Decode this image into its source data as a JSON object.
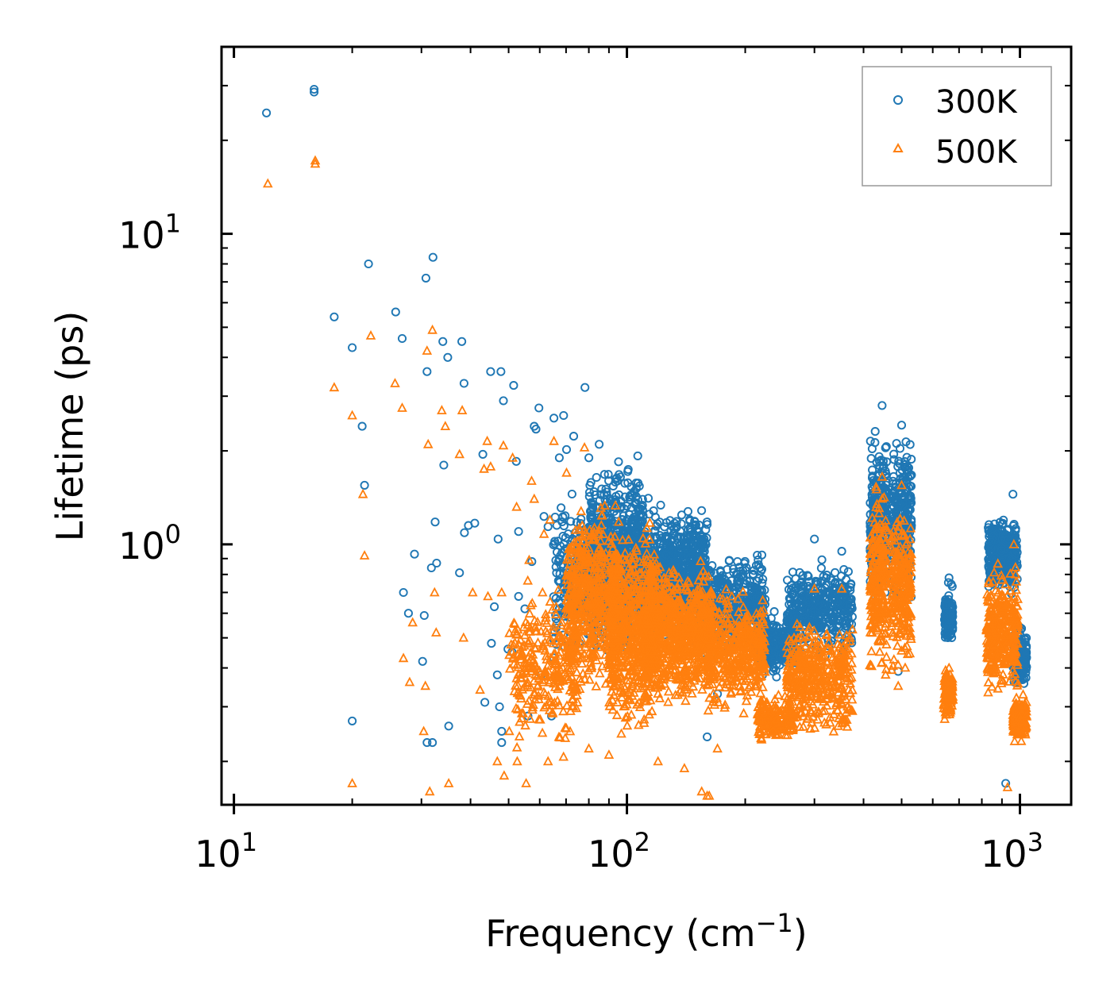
{
  "chart_data": {
    "type": "scatter",
    "xscale": "log",
    "yscale": "log",
    "xlim": [
      9.3,
      1350
    ],
    "ylim": [
      0.145,
      40
    ],
    "xlabel": "Frequency (cm",
    "xlabel_sup": "−1",
    "xlabel_close": ")",
    "ylabel": "Lifetime (ps)",
    "x_ticks": [
      {
        "value": 10,
        "base": "10",
        "exp": "1"
      },
      {
        "value": 100,
        "base": "10",
        "exp": "2"
      },
      {
        "value": 1000,
        "base": "10",
        "exp": "3"
      }
    ],
    "y_ticks": [
      {
        "value": 1,
        "base": "10",
        "exp": "0"
      },
      {
        "value": 10,
        "base": "10",
        "exp": "1"
      }
    ],
    "legend_position": "top-right",
    "series": [
      {
        "name": "300K",
        "marker": "circle",
        "color": "#1f77b4",
        "points": [
          [
            12.1,
            24.5
          ],
          [
            16,
            29.2
          ],
          [
            16,
            28.6
          ],
          [
            18,
            5.4
          ],
          [
            20,
            4.3
          ],
          [
            21.2,
            2.4
          ],
          [
            21.5,
            1.55
          ],
          [
            22,
            8.0
          ],
          [
            20,
            0.27
          ],
          [
            25.8,
            5.6
          ],
          [
            26.8,
            4.6
          ],
          [
            27,
            0.7
          ],
          [
            27.8,
            0.6
          ],
          [
            28.8,
            0.93
          ],
          [
            30.5,
            0.59
          ],
          [
            30.8,
            7.2
          ],
          [
            31,
            3.6
          ],
          [
            31,
            0.23
          ],
          [
            30.2,
            0.42
          ],
          [
            31.8,
            0.84
          ],
          [
            32.1,
            8.4
          ],
          [
            32.5,
            1.18
          ],
          [
            32.8,
            0.87
          ],
          [
            32,
            0.23
          ],
          [
            34,
            4.5
          ],
          [
            34.2,
            1.8
          ],
          [
            35,
            4.0
          ],
          [
            35.2,
            0.26
          ],
          [
            37.5,
            0.81
          ],
          [
            38,
            4.5
          ],
          [
            38.5,
            3.3
          ],
          [
            38.6,
            1.09
          ],
          [
            39.5,
            1.15
          ],
          [
            41,
            1.17
          ],
          [
            43,
            1.95
          ],
          [
            43.5,
            0.31
          ],
          [
            45,
            3.6
          ],
          [
            45.2,
            0.48
          ],
          [
            46,
            0.63
          ],
          [
            46.8,
            0.38
          ],
          [
            47,
            1.04
          ],
          [
            47.4,
            0.3
          ],
          [
            47.8,
            3.6
          ],
          [
            48,
            0.23
          ],
          [
            48.5,
            2.9
          ],
          [
            48,
            0.25
          ],
          [
            49.8,
            0.46
          ],
          [
            51,
            0.45
          ],
          [
            51.5,
            3.25
          ],
          [
            52.3,
            1.85
          ],
          [
            53,
            1.1
          ],
          [
            53,
            0.68
          ],
          [
            55,
            0.62
          ],
          [
            56,
            0.28
          ],
          [
            57.3,
            0.88
          ],
          [
            58.1,
            2.4
          ],
          [
            58.7,
            2.35
          ],
          [
            59.7,
            2.75
          ],
          [
            60.5,
            0.38
          ],
          [
            61.5,
            1.23
          ],
          [
            63,
            1.14
          ],
          [
            64.3,
            0.28
          ],
          [
            65.2,
            2.55
          ],
          [
            66,
            0.67
          ],
          [
            67.3,
            1.9
          ],
          [
            69,
            2.6
          ],
          [
            70.2,
            2.02
          ],
          [
            73.2,
            2.23
          ],
          [
            78.2,
            3.2
          ],
          [
            80,
            1.9
          ],
          [
            85,
            2.1
          ],
          [
            97,
            0.98
          ],
          [
            106,
            0.83
          ],
          [
            170,
            0.33
          ],
          [
            160,
            0.24
          ],
          [
            300,
            1.04
          ],
          [
            352,
            0.95
          ],
          [
            446,
            2.8
          ],
          [
            500,
            2.42
          ],
          [
            490,
            0.39
          ],
          [
            920,
            0.17
          ],
          [
            960,
            1.45
          ],
          [
            660,
            0.78
          ]
        ],
        "clusters": [
          {
            "x": [
              65,
              90
            ],
            "y": [
              0.38,
              1.6
            ],
            "n": 280
          },
          {
            "x": [
              80,
              110
            ],
            "y": [
              0.42,
              2.1
            ],
            "n": 650
          },
          {
            "x": [
              105,
              160
            ],
            "y": [
              0.45,
              1.45
            ],
            "n": 820
          },
          {
            "x": [
              150,
              225
            ],
            "y": [
              0.4,
              1.0
            ],
            "n": 480
          },
          {
            "x": [
              215,
              270
            ],
            "y": [
              0.36,
              0.62
            ],
            "n": 280
          },
          {
            "x": [
              255,
              375
            ],
            "y": [
              0.4,
              0.95
            ],
            "n": 380
          },
          {
            "x": [
              415,
              458
            ],
            "y": [
              0.6,
              2.4
            ],
            "n": 280
          },
          {
            "x": [
              470,
              530
            ],
            "y": [
              0.6,
              2.35
            ],
            "n": 260
          },
          {
            "x": [
              640,
              675
            ],
            "y": [
              0.45,
              0.78
            ],
            "n": 110
          },
          {
            "x": [
              830,
              985
            ],
            "y": [
              0.65,
              1.3
            ],
            "n": 320
          },
          {
            "x": [
              960,
              1040
            ],
            "y": [
              0.34,
              0.58
            ],
            "n": 140
          }
        ]
      },
      {
        "name": "500K",
        "marker": "triangle",
        "color": "#ff7f0e",
        "points": [
          [
            12.2,
            14.5
          ],
          [
            16.1,
            17.2
          ],
          [
            16.1,
            16.8
          ],
          [
            18,
            3.2
          ],
          [
            20,
            2.6
          ],
          [
            20,
            0.17
          ],
          [
            21.3,
            1.45
          ],
          [
            21.5,
            0.92
          ],
          [
            22.3,
            4.7
          ],
          [
            25.7,
            3.3
          ],
          [
            26.8,
            2.75
          ],
          [
            27,
            0.43
          ],
          [
            28,
            0.36
          ],
          [
            28.5,
            0.56
          ],
          [
            30.4,
            0.25
          ],
          [
            30.7,
            0.35
          ],
          [
            31,
            4.2
          ],
          [
            31.2,
            2.1
          ],
          [
            31.5,
            0.16
          ],
          [
            32,
            4.9
          ],
          [
            32.4,
            0.7
          ],
          [
            32.7,
            0.52
          ],
          [
            33.8,
            2.7
          ],
          [
            34.5,
            2.4
          ],
          [
            35.2,
            0.17
          ],
          [
            37.5,
            1.95
          ],
          [
            38.1,
            2.7
          ],
          [
            38.4,
            0.5
          ],
          [
            40.5,
            0.7
          ],
          [
            42.3,
            0.34
          ],
          [
            43.3,
            1.75
          ],
          [
            44.1,
            2.15
          ],
          [
            44.3,
            0.68
          ],
          [
            45,
            1.78
          ],
          [
            46.8,
            0.2
          ],
          [
            48.5,
            2.08
          ],
          [
            48.7,
            0.18
          ],
          [
            48,
            0.7
          ],
          [
            50.2,
            0.44
          ],
          [
            51.2,
            1.9
          ],
          [
            52.6,
            0.2
          ],
          [
            52.4,
            1.32
          ],
          [
            55.4,
            0.17
          ],
          [
            56.4,
            0.89
          ],
          [
            57.2,
            1.6
          ],
          [
            58.1,
            1.4
          ],
          [
            61,
            0.7
          ],
          [
            61.5,
            1.08
          ],
          [
            63.7,
            1.2
          ],
          [
            65.2,
            2.15
          ],
          [
            70.2,
            1.7
          ],
          [
            78,
            2.05
          ],
          [
            63,
            0.2
          ],
          [
            80,
            0.22
          ],
          [
            90,
            0.21
          ],
          [
            120,
            0.2
          ],
          [
            140,
            0.19
          ],
          [
            155,
            0.16
          ],
          [
            160,
            0.155
          ],
          [
            162,
            0.155
          ],
          [
            170,
            0.22
          ],
          [
            300,
            0.72
          ],
          [
            352,
            0.72
          ],
          [
            446,
            1.65
          ],
          [
            500,
            1.55
          ],
          [
            490,
            0.35
          ],
          [
            930,
            0.165
          ],
          [
            965,
            1.0
          ],
          [
            660,
            0.4
          ]
        ],
        "clusters": [
          {
            "x": [
              50,
              75
            ],
            "y": [
              0.2,
              0.8
            ],
            "n": 280
          },
          {
            "x": [
              70,
              95
            ],
            "y": [
              0.28,
              1.55
            ],
            "n": 550
          },
          {
            "x": [
              90,
              120
            ],
            "y": [
              0.22,
              1.3
            ],
            "n": 620
          },
          {
            "x": [
              110,
              165
            ],
            "y": [
              0.28,
              0.95
            ],
            "n": 780
          },
          {
            "x": [
              160,
              225
            ],
            "y": [
              0.27,
              0.75
            ],
            "n": 420
          },
          {
            "x": [
              215,
              265
            ],
            "y": [
              0.22,
              0.34
            ],
            "n": 160
          },
          {
            "x": [
              255,
              375
            ],
            "y": [
              0.22,
              0.62
            ],
            "n": 420
          },
          {
            "x": [
              415,
              458
            ],
            "y": [
              0.34,
              1.6
            ],
            "n": 240
          },
          {
            "x": [
              470,
              530
            ],
            "y": [
              0.35,
              1.45
            ],
            "n": 230
          },
          {
            "x": [
              640,
              675
            ],
            "y": [
              0.26,
              0.42
            ],
            "n": 110
          },
          {
            "x": [
              820,
              990
            ],
            "y": [
              0.3,
              0.9
            ],
            "n": 330
          },
          {
            "x": [
              960,
              1040
            ],
            "y": [
              0.22,
              0.34
            ],
            "n": 160
          }
        ]
      }
    ]
  }
}
